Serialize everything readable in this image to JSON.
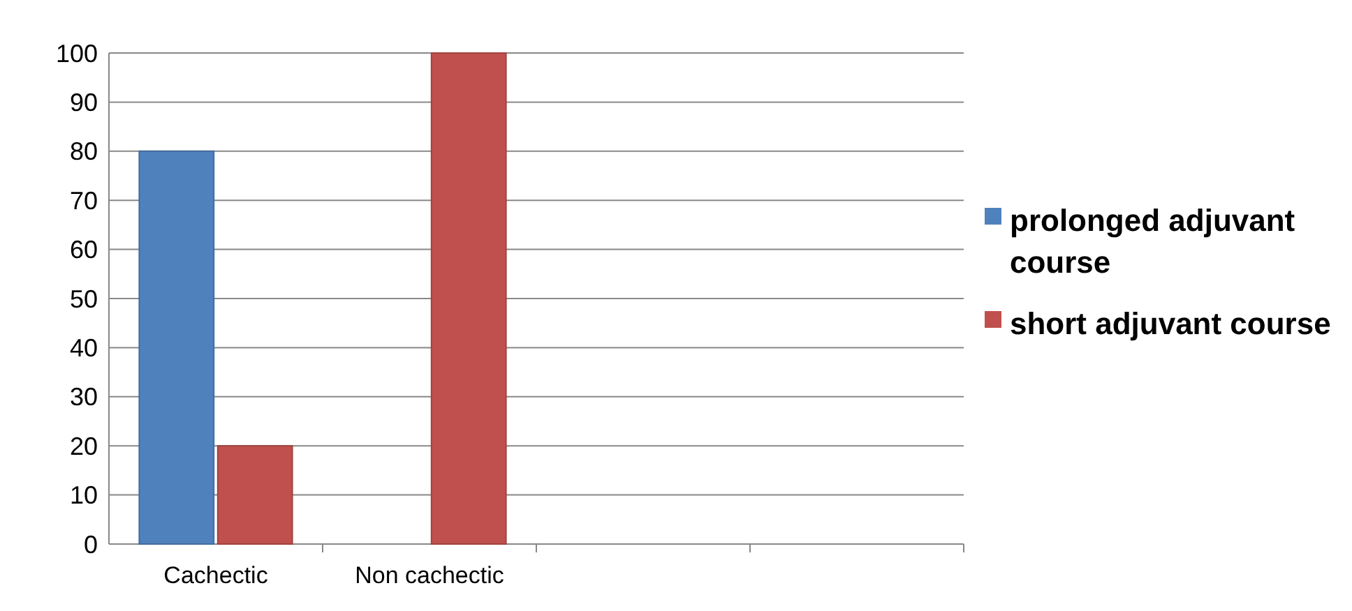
{
  "chart_data": {
    "type": "bar",
    "categories": [
      "Cachectic",
      "Non cachectic",
      null,
      null
    ],
    "series": [
      {
        "name": "prolonged adjuvant course",
        "color": "#4f81bd",
        "values": [
          80,
          0,
          null,
          null
        ]
      },
      {
        "name": "short adjuvant course",
        "color": "#c0504d",
        "values": [
          20,
          100,
          null,
          null
        ]
      }
    ],
    "ylim": [
      0,
      100
    ],
    "yticks": [
      0,
      10,
      20,
      30,
      40,
      50,
      60,
      70,
      80,
      90,
      100
    ],
    "grid": "y",
    "legend": "right"
  }
}
